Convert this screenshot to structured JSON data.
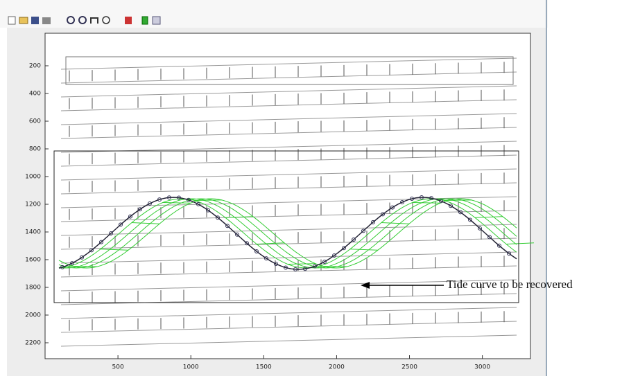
{
  "figure": {
    "xlim": [
      0,
      3330
    ],
    "ylim": [
      -35,
      2315
    ],
    "xticks": [
      500,
      1000,
      1500,
      2000,
      2500,
      3000
    ],
    "yticks": [
      200,
      400,
      600,
      800,
      1000,
      1200,
      1400,
      1600,
      1800,
      2000,
      2200
    ],
    "annotation": "Tide curve to be recovered"
  }
}
